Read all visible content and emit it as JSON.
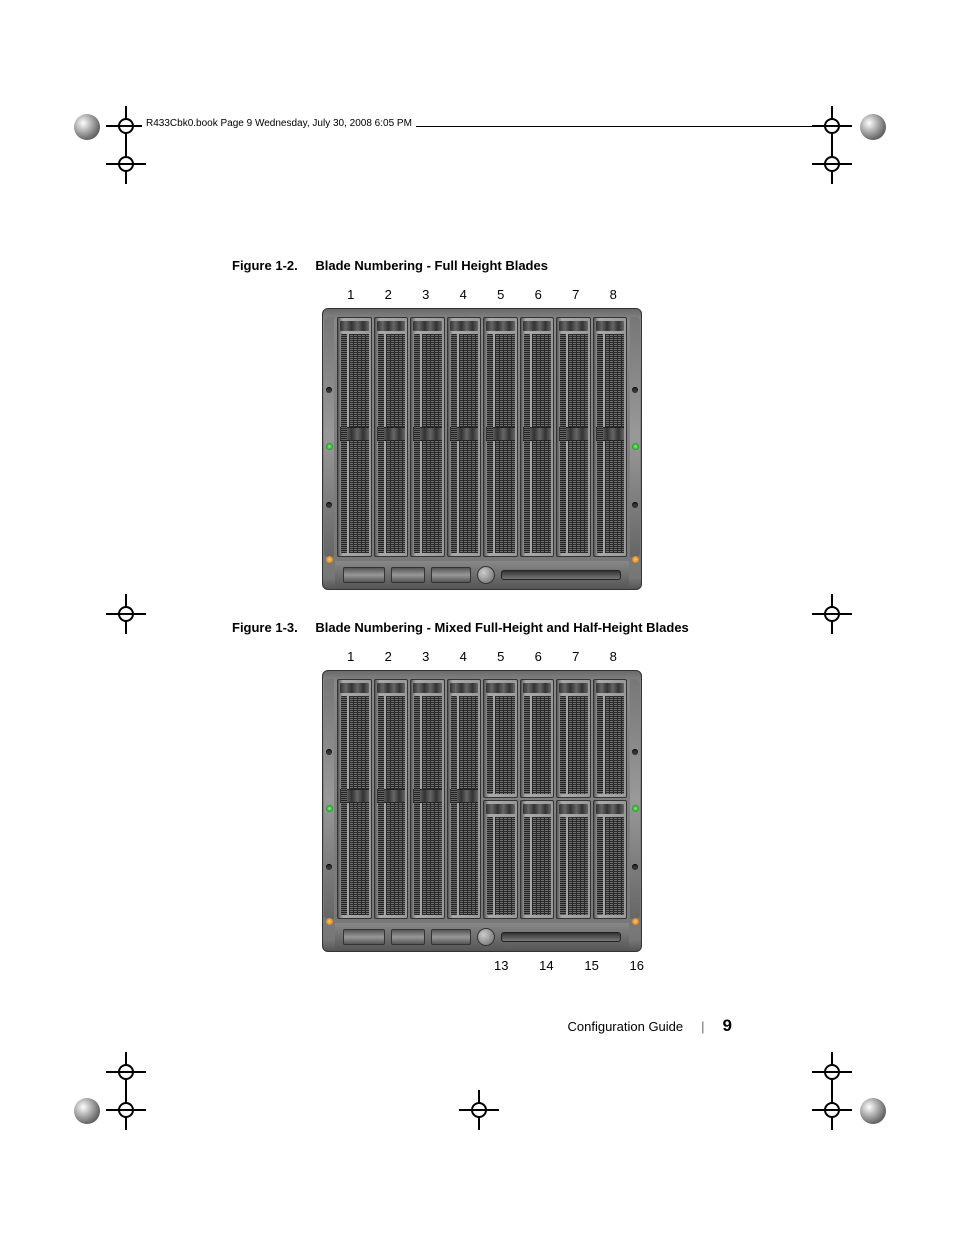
{
  "header": {
    "text": "R433Cbk0.book  Page 9  Wednesday, July 30, 2008  6:05 PM"
  },
  "figure1": {
    "label": "Figure 1-2.",
    "title": "Blade Numbering - Full Height Blades",
    "top_numbers": [
      "1",
      "2",
      "3",
      "4",
      "5",
      "6",
      "7",
      "8"
    ],
    "columns": 8,
    "layout": "full"
  },
  "figure2": {
    "label": "Figure 1-3.",
    "title": "Blade Numbering - Mixed Full-Height and Half-Height Blades",
    "top_numbers": [
      "1",
      "2",
      "3",
      "4",
      "5",
      "6",
      "7",
      "8"
    ],
    "bottom_numbers": [
      "13",
      "14",
      "15",
      "16"
    ],
    "full_columns": 4,
    "half_columns": 4
  },
  "footer": {
    "doc_title": "Configuration Guide",
    "separator": "|",
    "page_number": "9"
  },
  "style": {
    "chassis_bg": "#777777",
    "blade_bg": "#999999",
    "grille_fg": "#2a2a2a",
    "led_green": "#00cc00",
    "led_orange": "#cc6600",
    "page_bg": "#ffffff"
  }
}
